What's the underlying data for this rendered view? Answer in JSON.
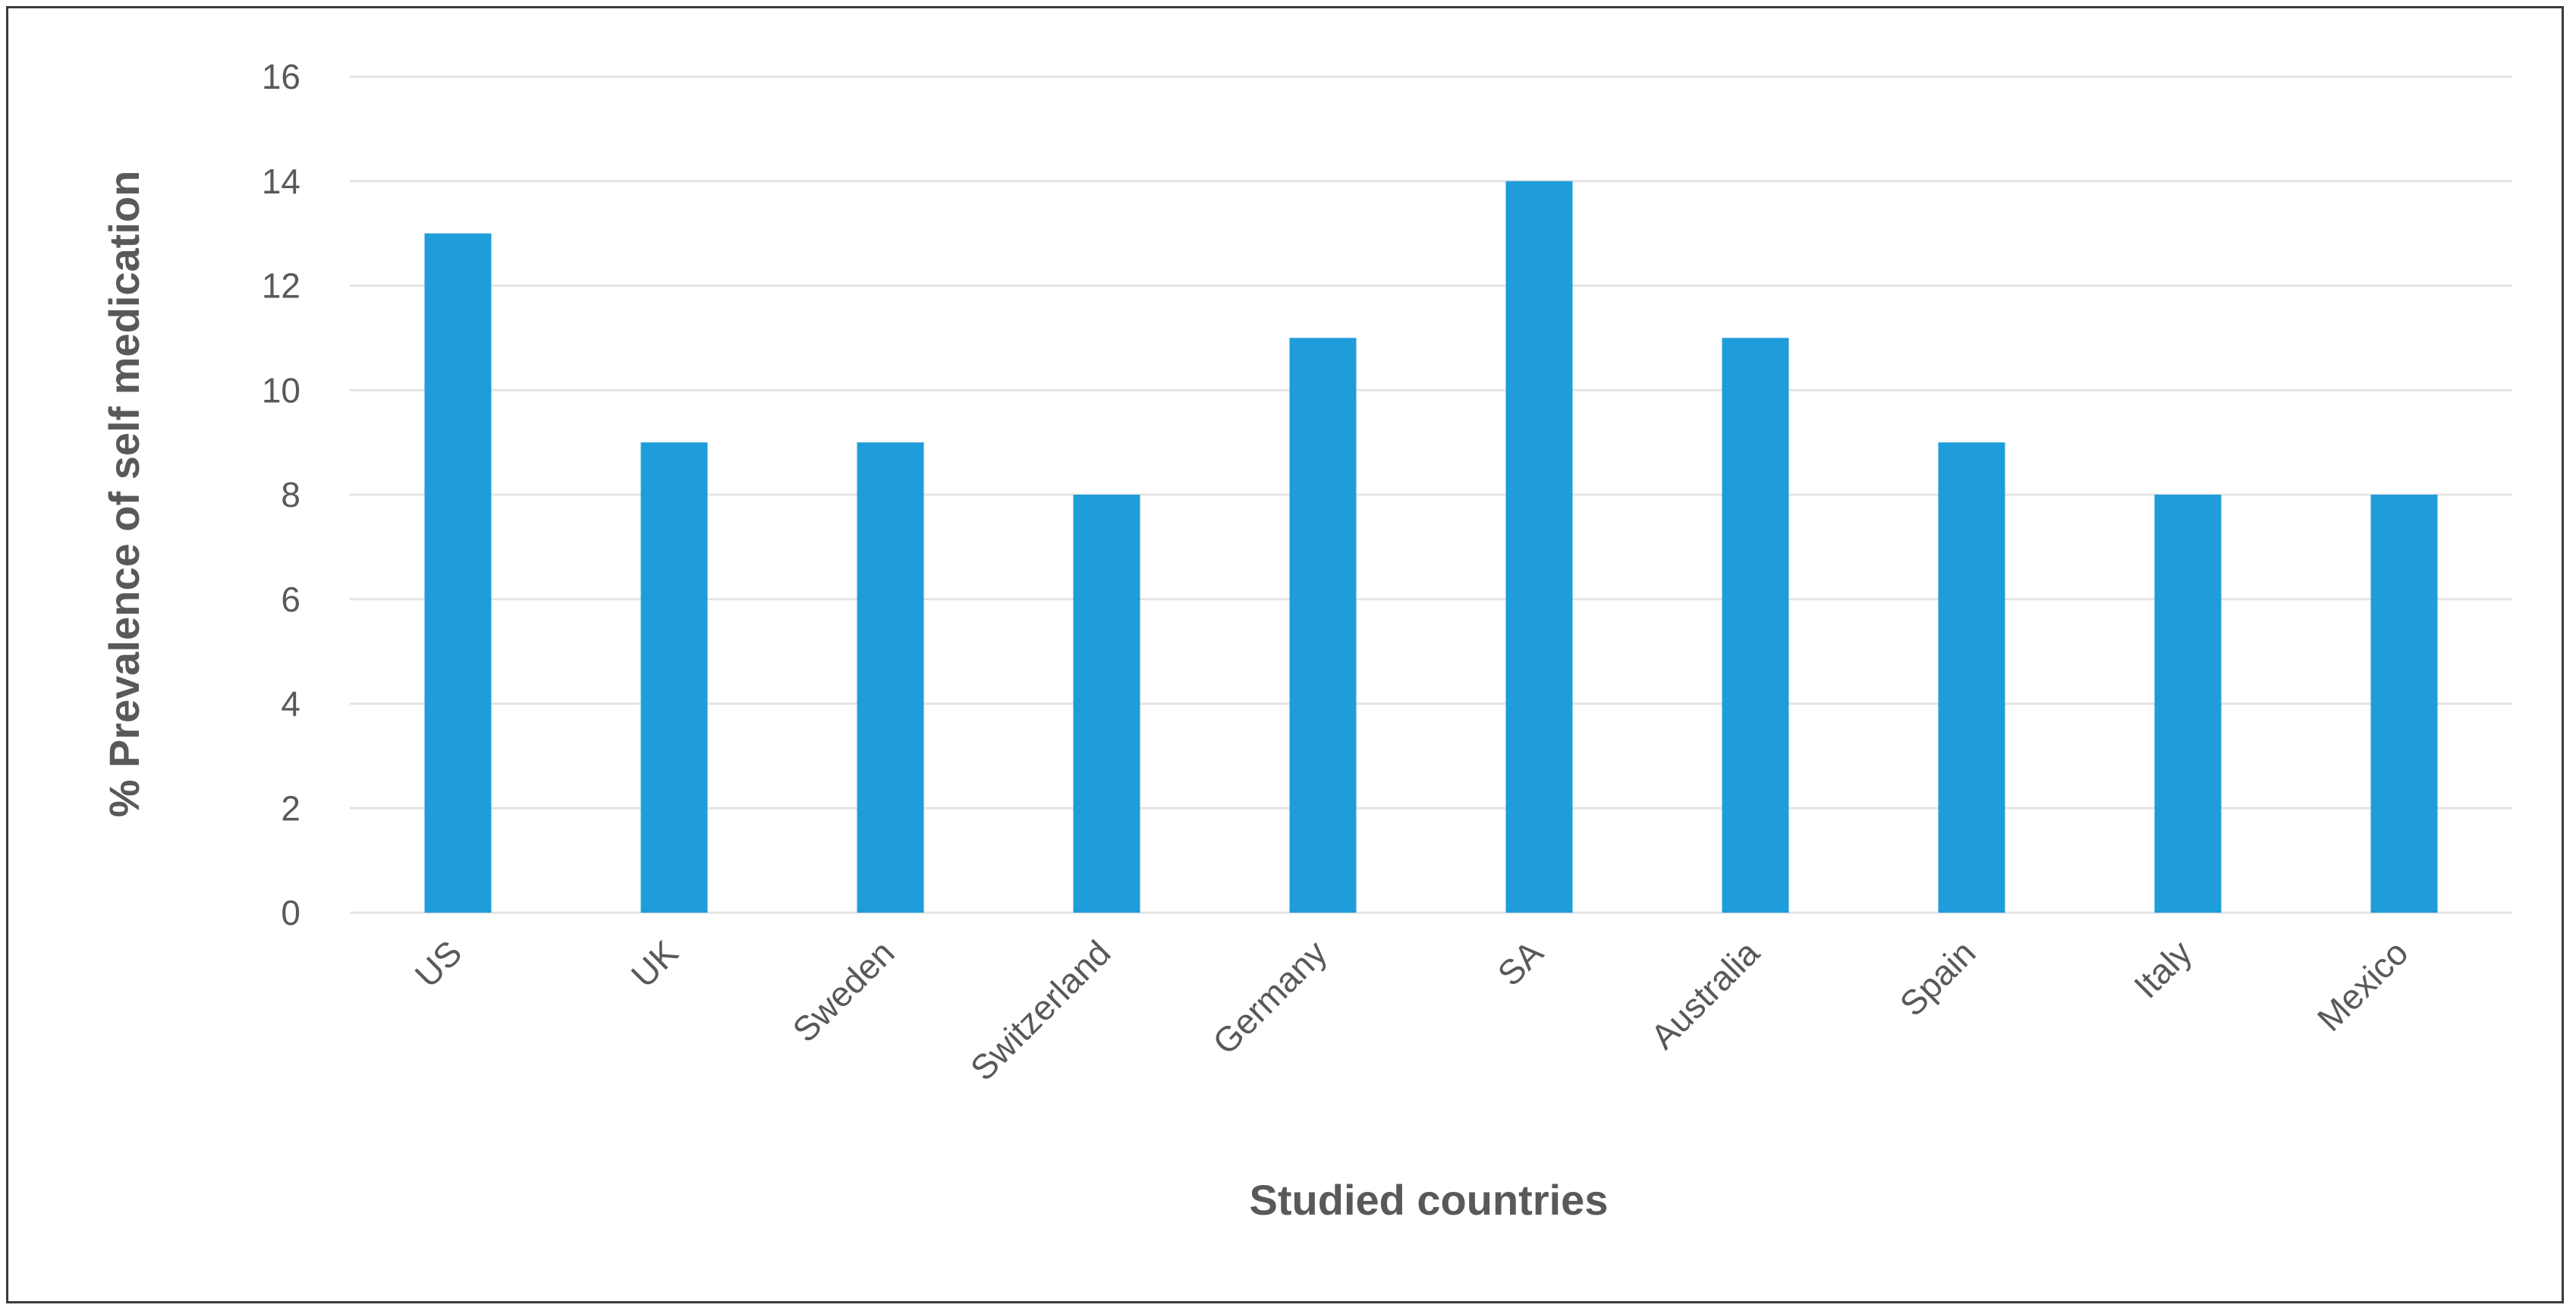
{
  "chart_data": {
    "type": "bar",
    "title": "",
    "xlabel": "Studied countries",
    "ylabel": "% Prevalence of self medication",
    "categories": [
      "US",
      "UK",
      "Sweden",
      "Switzerland",
      "Germany",
      "SA",
      "Australia",
      "Spain",
      "Italy",
      "Mexico"
    ],
    "values": [
      13,
      9,
      9,
      8,
      11,
      14,
      11,
      9,
      8,
      8
    ],
    "ylim": [
      0,
      16
    ],
    "yticks": [
      0,
      2,
      4,
      6,
      8,
      10,
      12,
      14,
      16
    ],
    "grid": true,
    "legend": "none",
    "bar_color": "#1f9ddb",
    "grid_color": "#e4e4e4"
  }
}
